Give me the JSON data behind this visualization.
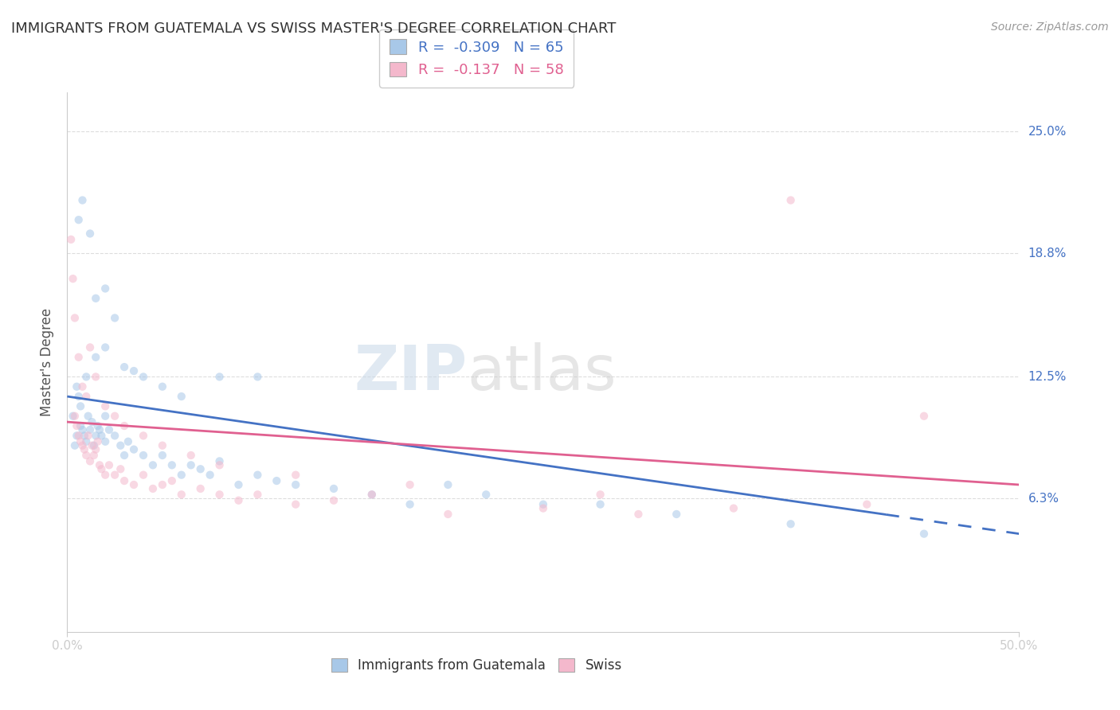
{
  "title": "IMMIGRANTS FROM GUATEMALA VS SWISS MASTER'S DEGREE CORRELATION CHART",
  "source": "Source: ZipAtlas.com",
  "ylabel": "Master's Degree",
  "ytick_labels": [
    "6.3%",
    "12.5%",
    "18.8%",
    "25.0%"
  ],
  "ytick_values": [
    6.3,
    12.5,
    18.8,
    25.0
  ],
  "xlim": [
    0.0,
    50.0
  ],
  "ylim": [
    -0.5,
    27.0
  ],
  "legend1_label": "R =  -0.309   N = 65",
  "legend2_label": "R =  -0.137   N = 58",
  "legend1_color": "#a8c8e8",
  "legend2_color": "#f4b8cc",
  "watermark": "ZIPatlas",
  "blue_scatter_x": [
    0.3,
    0.4,
    0.5,
    0.5,
    0.6,
    0.7,
    0.7,
    0.8,
    0.9,
    1.0,
    1.0,
    1.1,
    1.2,
    1.3,
    1.4,
    1.5,
    1.6,
    1.7,
    1.8,
    2.0,
    2.0,
    2.2,
    2.5,
    2.8,
    3.0,
    3.2,
    3.5,
    4.0,
    4.5,
    5.0,
    5.5,
    6.0,
    6.5,
    7.0,
    7.5,
    8.0,
    9.0,
    10.0,
    11.0,
    12.0,
    14.0,
    16.0,
    18.0,
    20.0,
    22.0,
    25.0,
    28.0,
    32.0,
    38.0,
    45.0,
    1.5,
    2.0,
    2.5,
    3.0,
    3.5,
    4.0,
    5.0,
    6.0,
    8.0,
    10.0,
    0.6,
    0.8,
    1.2,
    1.5,
    2.0
  ],
  "blue_scatter_y": [
    10.5,
    9.0,
    9.5,
    12.0,
    11.5,
    11.0,
    10.0,
    9.8,
    9.5,
    9.2,
    12.5,
    10.5,
    9.8,
    10.2,
    9.0,
    9.5,
    10.0,
    9.8,
    9.5,
    9.2,
    10.5,
    9.8,
    9.5,
    9.0,
    8.5,
    9.2,
    8.8,
    8.5,
    8.0,
    8.5,
    8.0,
    7.5,
    8.0,
    7.8,
    7.5,
    8.2,
    7.0,
    7.5,
    7.2,
    7.0,
    6.8,
    6.5,
    6.0,
    7.0,
    6.5,
    6.0,
    6.0,
    5.5,
    5.0,
    4.5,
    13.5,
    14.0,
    15.5,
    13.0,
    12.8,
    12.5,
    12.0,
    11.5,
    12.5,
    12.5,
    20.5,
    21.5,
    19.8,
    16.5,
    17.0
  ],
  "pink_scatter_x": [
    0.2,
    0.3,
    0.4,
    0.5,
    0.6,
    0.7,
    0.8,
    0.9,
    1.0,
    1.1,
    1.2,
    1.3,
    1.4,
    1.5,
    1.6,
    1.7,
    1.8,
    2.0,
    2.2,
    2.5,
    2.8,
    3.0,
    3.5,
    4.0,
    4.5,
    5.0,
    5.5,
    6.0,
    7.0,
    8.0,
    9.0,
    10.0,
    12.0,
    14.0,
    16.0,
    20.0,
    25.0,
    30.0,
    35.0,
    42.0,
    0.4,
    0.6,
    0.8,
    1.0,
    1.2,
    1.5,
    2.0,
    2.5,
    3.0,
    4.0,
    5.0,
    6.5,
    8.0,
    12.0,
    18.0,
    28.0,
    38.0,
    45.0
  ],
  "pink_scatter_y": [
    19.5,
    17.5,
    10.5,
    10.0,
    9.5,
    9.2,
    9.0,
    8.8,
    8.5,
    9.5,
    8.2,
    9.0,
    8.5,
    8.8,
    9.2,
    8.0,
    7.8,
    7.5,
    8.0,
    7.5,
    7.8,
    7.2,
    7.0,
    7.5,
    6.8,
    7.0,
    7.2,
    6.5,
    6.8,
    6.5,
    6.2,
    6.5,
    6.0,
    6.2,
    6.5,
    5.5,
    5.8,
    5.5,
    5.8,
    6.0,
    15.5,
    13.5,
    12.0,
    11.5,
    14.0,
    12.5,
    11.0,
    10.5,
    10.0,
    9.5,
    9.0,
    8.5,
    8.0,
    7.5,
    7.0,
    6.5,
    21.5,
    10.5
  ],
  "blue_line_x0": 0.0,
  "blue_line_y0": 11.5,
  "blue_line_x1": 50.0,
  "blue_line_y1": 4.5,
  "blue_dashed_start_x": 43.0,
  "pink_line_x0": 0.0,
  "pink_line_y0": 10.2,
  "pink_line_x1": 50.0,
  "pink_line_y1": 7.0,
  "background_color": "#ffffff",
  "grid_color": "#dddddd",
  "scatter_alpha": 0.55,
  "scatter_size": 55
}
